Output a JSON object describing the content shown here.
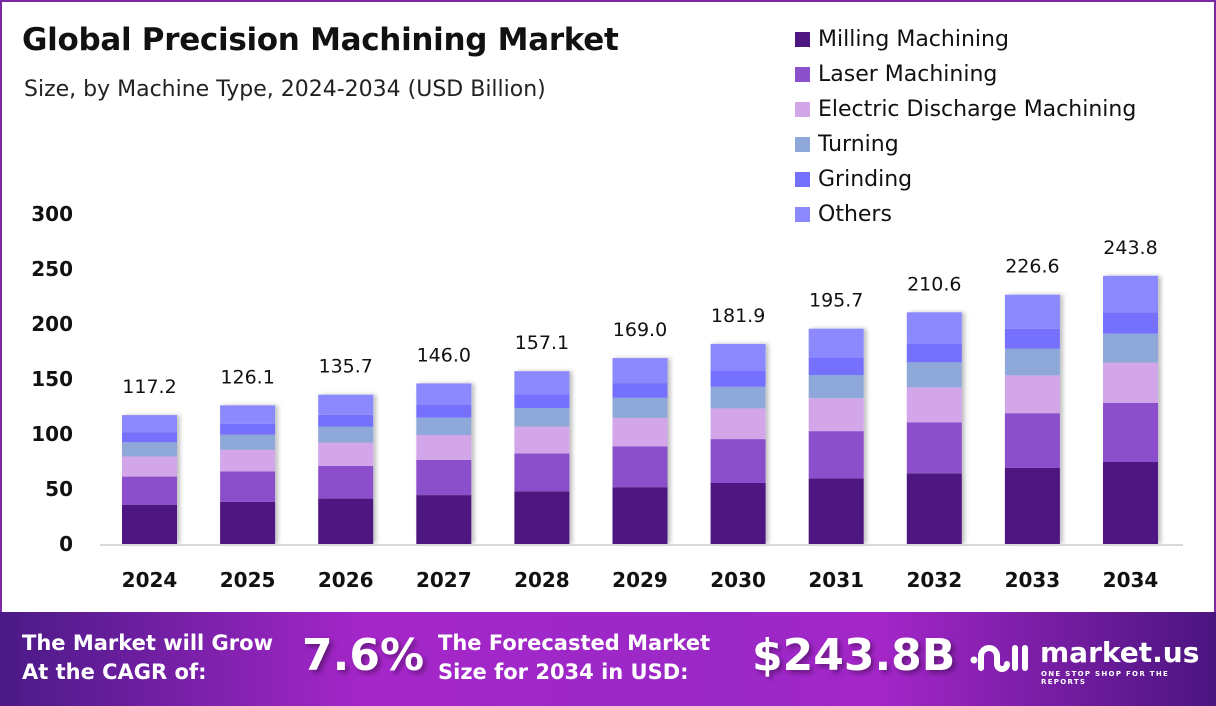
{
  "header": {
    "title": "Global Precision Machining Market",
    "subtitle": "Size, by Machine Type, 2024-2034 (USD Billion)"
  },
  "chart_data": {
    "type": "bar",
    "stacked": true,
    "title": "Global Precision Machining Market",
    "subtitle": "Size, by Machine Type, 2024-2034 (USD Billion)",
    "xlabel": "",
    "ylabel": "",
    "ylim": [
      0,
      300
    ],
    "yticks": [
      0,
      50,
      100,
      150,
      200,
      250,
      300
    ],
    "grid": false,
    "legend_position": "top-right",
    "categories": [
      "2024",
      "2025",
      "2026",
      "2027",
      "2028",
      "2029",
      "2030",
      "2031",
      "2032",
      "2033",
      "2034"
    ],
    "totals": [
      117.2,
      126.1,
      135.7,
      146.0,
      157.1,
      169.0,
      181.9,
      195.7,
      210.6,
      226.6,
      243.8
    ],
    "total_labels": [
      "117.2",
      "126.1",
      "135.7",
      "146.0",
      "157.1",
      "169.0",
      "181.9",
      "195.7",
      "210.6",
      "226.6",
      "243.8"
    ],
    "series": [
      {
        "name": "Milling Machining",
        "color": "#4e1680",
        "values": [
          35.7,
          38.4,
          41.3,
          44.5,
          47.9,
          51.6,
          55.5,
          59.7,
          64.3,
          69.2,
          74.6
        ]
      },
      {
        "name": "Laser Machining",
        "color": "#8b50cc",
        "values": [
          25.6,
          27.6,
          29.7,
          32.0,
          34.4,
          37.0,
          39.9,
          42.9,
          46.2,
          49.7,
          53.6
        ]
      },
      {
        "name": "Electric Discharge Machining",
        "color": "#d3a6ea",
        "values": [
          18.3,
          19.7,
          21.1,
          22.6,
          24.3,
          26.0,
          27.9,
          29.9,
          32.0,
          34.3,
          36.6
        ]
      },
      {
        "name": "Turning",
        "color": "#8ea8da",
        "values": [
          12.8,
          13.7,
          14.7,
          15.8,
          17.0,
          18.3,
          19.6,
          21.1,
          22.7,
          24.4,
          26.3
        ]
      },
      {
        "name": "Grinding",
        "color": "#7570fd",
        "values": [
          9.2,
          9.9,
          10.7,
          11.5,
          12.4,
          13.4,
          14.4,
          15.5,
          16.7,
          18.0,
          19.5
        ]
      },
      {
        "name": "Others",
        "color": "#8c88fd",
        "values": [
          15.6,
          16.8,
          18.2,
          19.6,
          21.1,
          22.7,
          24.6,
          26.6,
          28.7,
          31.0,
          33.2
        ]
      }
    ]
  },
  "banner": {
    "cagr_text_line1": "The Market will Grow",
    "cagr_text_line2": "At the CAGR of:",
    "cagr_value": "7.6%",
    "forecast_text_line1": "The Forecasted Market",
    "forecast_text_line2": "Size for 2034 in USD:",
    "forecast_value": "$243.8B",
    "logo_name": "market.us",
    "logo_tagline": "ONE STOP SHOP FOR THE REPORTS"
  },
  "colors": {
    "frame": "#7b2aa6",
    "axis_line": "#d9d9d9",
    "banner_start": "#4a1a86",
    "banner_mid": "#a526c9"
  }
}
